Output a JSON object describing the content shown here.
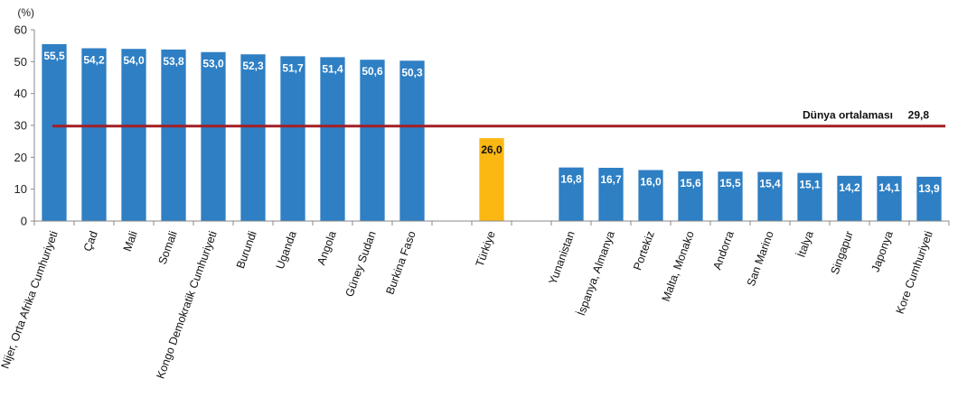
{
  "chart_data": {
    "type": "bar",
    "ylabel": "(%)",
    "ylim": [
      0,
      60
    ],
    "yticks": [
      "0",
      "10",
      "20",
      "30",
      "40",
      "50",
      "60"
    ],
    "grid": false,
    "categories": [
      "Nijer, Orta Afrika Cumhuriyeti",
      "Çad",
      "Mali",
      "Somali",
      "Kongo Demokratik Cumhuriyeti",
      "Burundi",
      "Uganda",
      "Angola",
      "Güney Sudan",
      "Burkina Faso",
      "",
      "Türkiye",
      "",
      "Yunanistan",
      "İspanya, Almanya",
      "Portekiz",
      "Malta, Monako",
      "Andorra",
      "San Marino",
      "İtalya",
      "Singapur",
      "Japonya",
      "Kore Cumhuriyeti"
    ],
    "values": [
      55.5,
      54.2,
      54.0,
      53.8,
      53.0,
      52.3,
      51.7,
      51.4,
      50.6,
      50.3,
      null,
      26.0,
      null,
      16.8,
      16.7,
      16.0,
      15.6,
      15.5,
      15.4,
      15.1,
      14.2,
      14.1,
      13.9
    ],
    "data_labels": [
      "55,5",
      "54,2",
      "54,0",
      "53,8",
      "53,0",
      "52,3",
      "51,7",
      "51,4",
      "50,6",
      "50,3",
      "",
      "26,0",
      "",
      "16,8",
      "16,7",
      "16,0",
      "15,6",
      "15,5",
      "15,4",
      "15,1",
      "14,2",
      "14,1",
      "13,9"
    ],
    "highlight_category": "Türkiye",
    "colors": {
      "bar": "#2e7fc4",
      "highlight": "#fbb813",
      "reference": "#a31f24",
      "label_light": "#ffffff",
      "label_dark": "#111111"
    },
    "reference_line": {
      "value": 29.8,
      "label": "Dünya ortalaması",
      "value_label": "29,8"
    }
  }
}
